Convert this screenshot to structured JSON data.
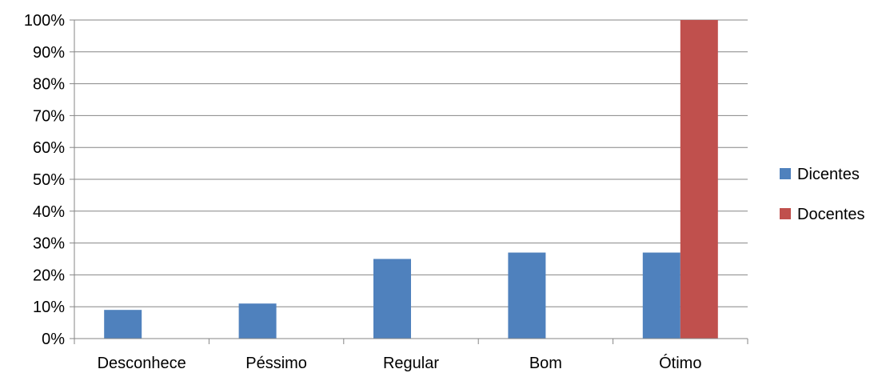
{
  "chart_data": {
    "type": "bar",
    "title": "",
    "xlabel": "",
    "ylabel": "",
    "categories": [
      "Desconhece",
      "Péssimo",
      "Regular",
      "Bom",
      "Ótimo"
    ],
    "series": [
      {
        "name": "Dicentes",
        "color": "#4f81bd",
        "values": [
          9,
          11,
          25,
          27,
          27
        ]
      },
      {
        "name": "Docentes",
        "color": "#c0504d",
        "values": [
          0,
          0,
          0,
          0,
          100
        ]
      }
    ],
    "ylim": [
      0,
      100
    ],
    "yticks": [
      0,
      10,
      20,
      30,
      40,
      50,
      60,
      70,
      80,
      90,
      100
    ],
    "ytick_labels": [
      "0%",
      "10%",
      "20%",
      "30%",
      "40%",
      "50%",
      "60%",
      "70%",
      "80%",
      "90%",
      "100%"
    ],
    "grid": true,
    "legend": "right"
  }
}
